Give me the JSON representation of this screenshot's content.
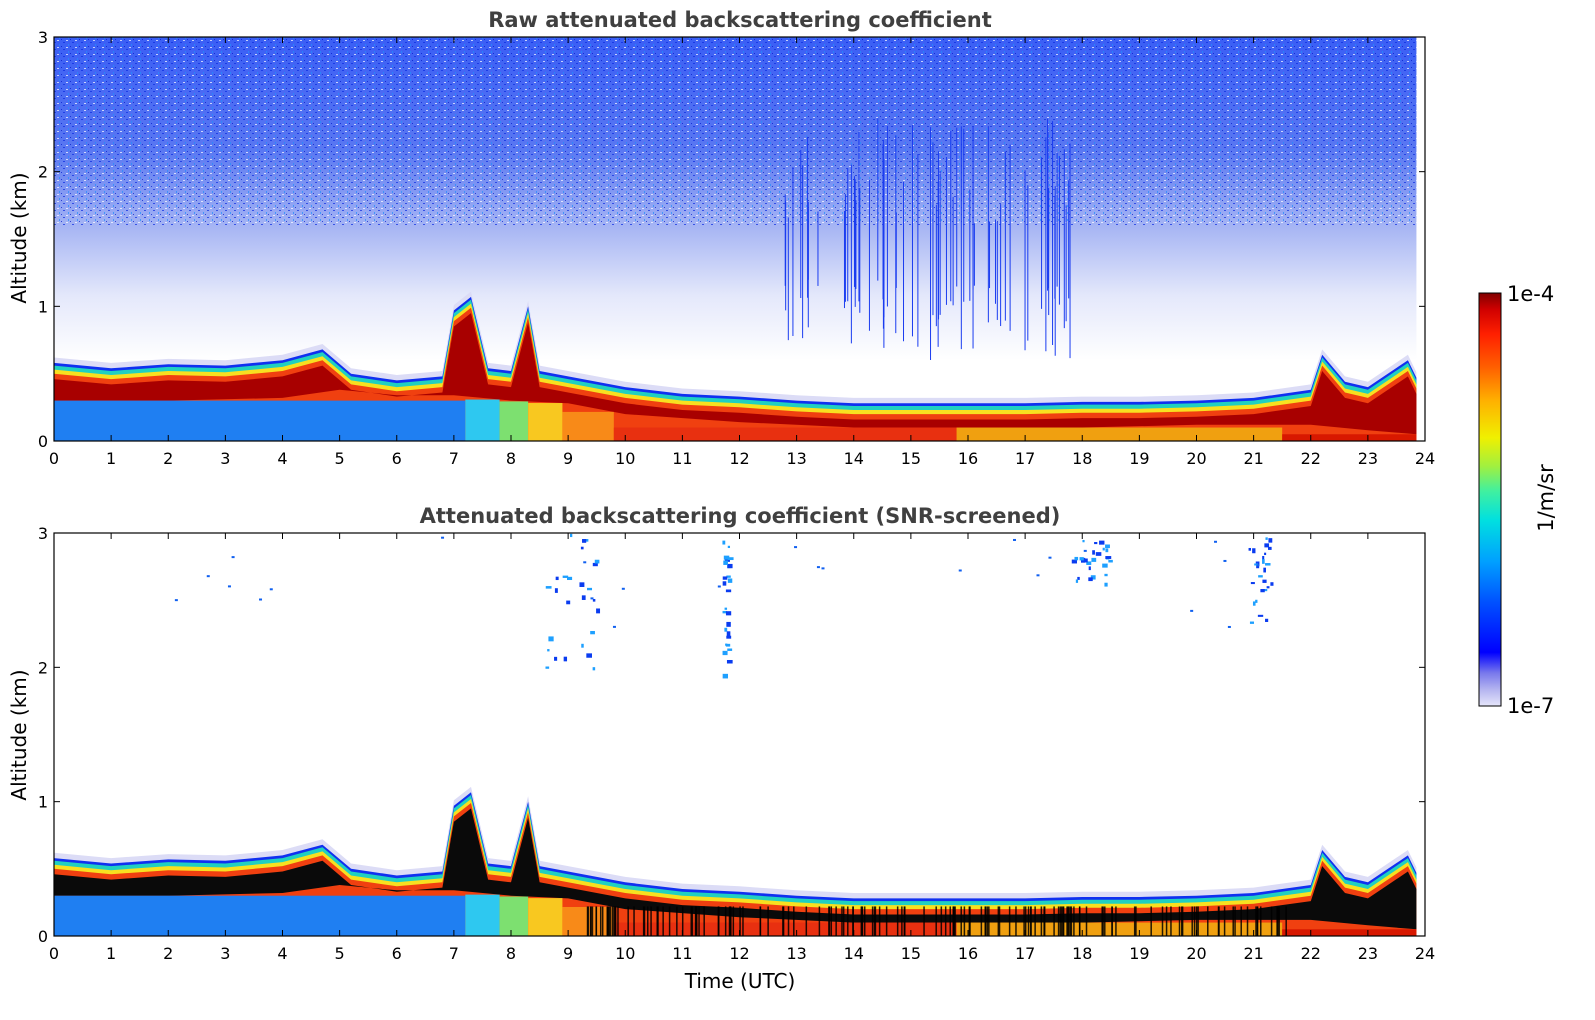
{
  "chart_data": [
    {
      "type": "heatmap",
      "title": "Raw attenuated backscattering coefficient",
      "xlabel": "",
      "ylabel": "Altitude (km)",
      "xlim": [
        0,
        24
      ],
      "ylim": [
        0,
        3
      ],
      "xticks": [
        "0",
        "1",
        "2",
        "3",
        "4",
        "5",
        "6",
        "7",
        "8",
        "9",
        "10",
        "11",
        "12",
        "13",
        "14",
        "15",
        "16",
        "17",
        "18",
        "19",
        "20",
        "21",
        "22",
        "23",
        "24"
      ],
      "yticks": [
        "0",
        "1",
        "2",
        "3"
      ],
      "layer_top_km": [
        [
          0,
          0.56
        ],
        [
          1,
          0.52
        ],
        [
          2,
          0.55
        ],
        [
          3,
          0.54
        ],
        [
          4,
          0.58
        ],
        [
          4.7,
          0.66
        ],
        [
          5.2,
          0.48
        ],
        [
          6,
          0.43
        ],
        [
          6.8,
          0.46
        ],
        [
          7.0,
          0.95
        ],
        [
          7.3,
          1.05
        ],
        [
          7.6,
          0.52
        ],
        [
          8.0,
          0.5
        ],
        [
          8.3,
          0.98
        ],
        [
          8.5,
          0.5
        ],
        [
          9,
          0.46
        ],
        [
          10,
          0.38
        ],
        [
          11,
          0.33
        ],
        [
          12,
          0.31
        ],
        [
          13,
          0.28
        ],
        [
          14,
          0.26
        ],
        [
          15,
          0.26
        ],
        [
          16,
          0.26
        ],
        [
          17,
          0.26
        ],
        [
          18,
          0.27
        ],
        [
          19,
          0.27
        ],
        [
          20,
          0.28
        ],
        [
          21,
          0.3
        ],
        [
          22,
          0.36
        ],
        [
          22.2,
          0.62
        ],
        [
          22.6,
          0.42
        ],
        [
          23,
          0.38
        ],
        [
          23.7,
          0.58
        ],
        [
          23.85,
          0.45
        ]
      ],
      "layer_bottom_km": [
        [
          0,
          0.3
        ],
        [
          2,
          0.3
        ],
        [
          4,
          0.32
        ],
        [
          5,
          0.38
        ],
        [
          6,
          0.34
        ],
        [
          7,
          0.34
        ],
        [
          8,
          0.3
        ],
        [
          9,
          0.28
        ],
        [
          10,
          0.2
        ],
        [
          12,
          0.14
        ],
        [
          14,
          0.1
        ],
        [
          16,
          0.1
        ],
        [
          18,
          0.1
        ],
        [
          20,
          0.12
        ],
        [
          22,
          0.12
        ],
        [
          23,
          0.08
        ],
        [
          23.85,
          0.05
        ]
      ],
      "near_surface_color_segments": [
        {
          "from": 0,
          "to": 7.2,
          "color": "#1f7ff2"
        },
        {
          "from": 7.2,
          "to": 7.8,
          "color": "#2ec8f0"
        },
        {
          "from": 7.8,
          "to": 8.3,
          "color": "#7de070"
        },
        {
          "from": 8.3,
          "to": 8.9,
          "color": "#f8c820"
        },
        {
          "from": 8.9,
          "to": 9.8,
          "color": "#f88a18"
        },
        {
          "from": 9.8,
          "to": 15.8,
          "color": "#e83010"
        },
        {
          "from": 15.8,
          "to": 21.5,
          "color": "#f0a010"
        },
        {
          "from": 21.5,
          "to": 23.85,
          "color": "#d81800"
        }
      ]
    },
    {
      "type": "heatmap",
      "title": "Attenuated backscattering coefficient (SNR-screened)",
      "xlabel": "Time (UTC)",
      "ylabel": "Altitude (km)",
      "xlim": [
        0,
        24
      ],
      "ylim": [
        0,
        3
      ],
      "xticks": [
        "0",
        "1",
        "2",
        "3",
        "4",
        "5",
        "6",
        "7",
        "8",
        "9",
        "10",
        "11",
        "12",
        "13",
        "14",
        "15",
        "16",
        "17",
        "18",
        "19",
        "20",
        "21",
        "22",
        "23",
        "24"
      ],
      "yticks": [
        "0",
        "1",
        "2",
        "3"
      ],
      "screened_cloud_columns": [
        {
          "x_from": 8.6,
          "x_to": 9.5,
          "y_from": 2.0,
          "y_to": 3.0
        },
        {
          "x_from": 11.7,
          "x_to": 11.8,
          "y_from": 1.95,
          "y_to": 2.95
        },
        {
          "x_from": 17.8,
          "x_to": 18.5,
          "y_from": 2.6,
          "y_to": 2.95
        },
        {
          "x_from": 20.9,
          "x_to": 21.3,
          "y_from": 2.3,
          "y_to": 3.0
        }
      ]
    }
  ],
  "colorbar": {
    "label": "1/m/sr",
    "max_label": "1e-4",
    "min_label": "1e-7",
    "scale": "log",
    "colormap": "jet",
    "colors": [
      "#e6e6fa",
      "#b4b4f0",
      "#7878ec",
      "#0000ff",
      "#0050ff",
      "#00a0ff",
      "#00e0e0",
      "#40f0a0",
      "#a0f040",
      "#f0f000",
      "#ffb000",
      "#ff6000",
      "#ff2000",
      "#d00000",
      "#800000"
    ]
  }
}
